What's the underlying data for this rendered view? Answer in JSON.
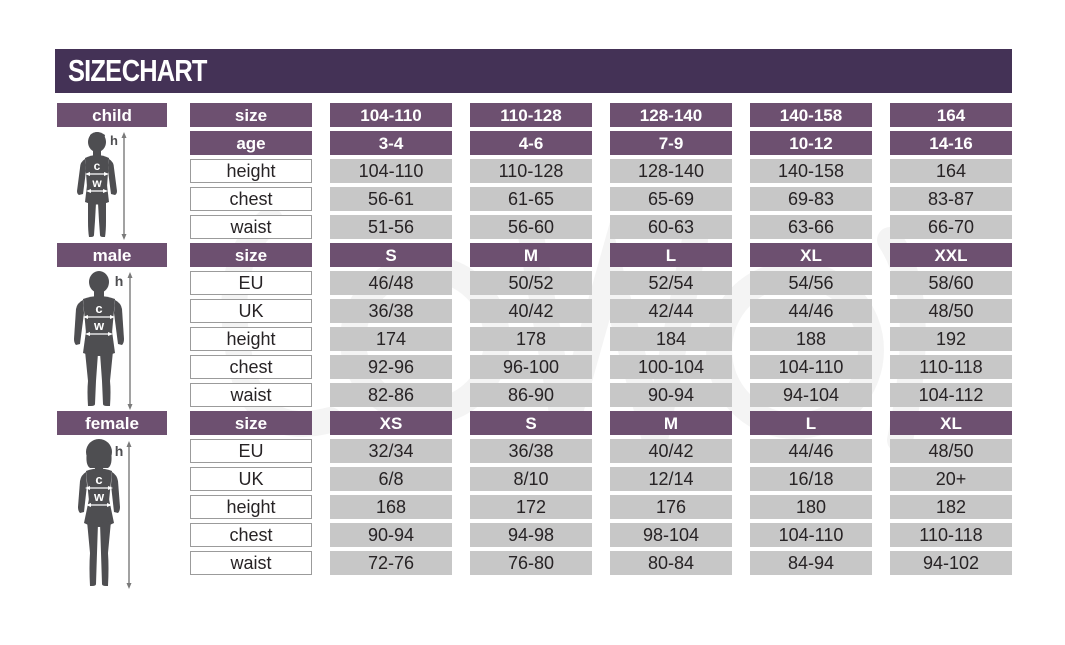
{
  "title": "SIZE CHART",
  "colors": {
    "title_bar": "#443256",
    "header_cell": "#6d5070",
    "data_cell": "#c7c7c7",
    "text": "#272325",
    "silhouette": "#4e4e51"
  },
  "figure_markers": {
    "height_label": "h",
    "chest_label": "c",
    "waist_label": "w"
  },
  "sections": [
    {
      "id": "child",
      "label": "child",
      "header_rows": [
        {
          "label": "size",
          "values": [
            "104-110",
            "110-128",
            "128-140",
            "140-158",
            "164"
          ]
        },
        {
          "label": "age",
          "values": [
            "3-4",
            "4-6",
            "7-9",
            "10-12",
            "14-16"
          ]
        }
      ],
      "data_rows": [
        {
          "label": "height",
          "values": [
            "104-110",
            "110-128",
            "128-140",
            "140-158",
            "164"
          ]
        },
        {
          "label": "chest",
          "values": [
            "56-61",
            "61-65",
            "65-69",
            "69-83",
            "83-87"
          ]
        },
        {
          "label": "waist",
          "values": [
            "51-56",
            "56-60",
            "60-63",
            "63-66",
            "66-70"
          ]
        }
      ]
    },
    {
      "id": "male",
      "label": "male",
      "header_rows": [
        {
          "label": "size",
          "values": [
            "S",
            "M",
            "L",
            "XL",
            "XXL"
          ]
        }
      ],
      "data_rows": [
        {
          "label": "EU",
          "values": [
            "46/48",
            "50/52",
            "52/54",
            "54/56",
            "58/60"
          ]
        },
        {
          "label": "UK",
          "values": [
            "36/38",
            "40/42",
            "42/44",
            "44/46",
            "48/50"
          ]
        },
        {
          "label": "height",
          "values": [
            "174",
            "178",
            "184",
            "188",
            "192"
          ]
        },
        {
          "label": "chest",
          "values": [
            "92-96",
            "96-100",
            "100-104",
            "104-110",
            "110-118"
          ]
        },
        {
          "label": "waist",
          "values": [
            "82-86",
            "86-90",
            "90-94",
            "94-104",
            "104-112"
          ]
        }
      ]
    },
    {
      "id": "female",
      "label": "female",
      "header_rows": [
        {
          "label": "size",
          "values": [
            "XS",
            "S",
            "M",
            "L",
            "XL"
          ]
        }
      ],
      "data_rows": [
        {
          "label": "EU",
          "values": [
            "32/34",
            "36/38",
            "40/42",
            "44/46",
            "48/50"
          ]
        },
        {
          "label": "UK",
          "values": [
            "6/8",
            "8/10",
            "12/14",
            "16/18",
            "20+"
          ]
        },
        {
          "label": "height",
          "values": [
            "168",
            "172",
            "176",
            "180",
            "182"
          ]
        },
        {
          "label": "chest",
          "values": [
            "90-94",
            "94-98",
            "98-104",
            "104-110",
            "110-118"
          ]
        },
        {
          "label": "waist",
          "values": [
            "72-76",
            "76-80",
            "80-84",
            "84-94",
            "94-102"
          ]
        }
      ]
    }
  ]
}
